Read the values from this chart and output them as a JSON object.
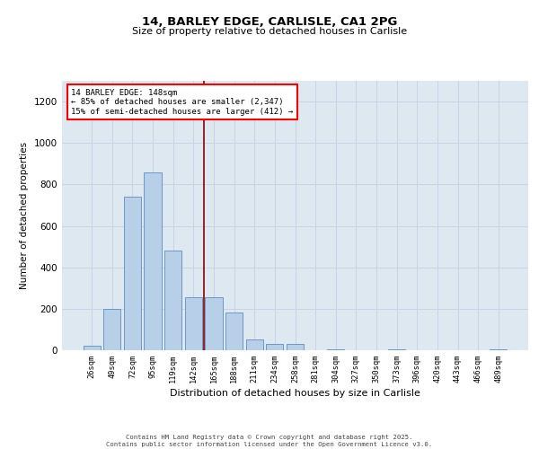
{
  "title_line1": "14, BARLEY EDGE, CARLISLE, CA1 2PG",
  "title_line2": "Size of property relative to detached houses in Carlisle",
  "xlabel": "Distribution of detached houses by size in Carlisle",
  "ylabel": "Number of detached properties",
  "categories": [
    "26sqm",
    "49sqm",
    "72sqm",
    "95sqm",
    "119sqm",
    "142sqm",
    "165sqm",
    "188sqm",
    "211sqm",
    "234sqm",
    "258sqm",
    "281sqm",
    "304sqm",
    "327sqm",
    "350sqm",
    "373sqm",
    "396sqm",
    "420sqm",
    "443sqm",
    "466sqm",
    "489sqm"
  ],
  "values": [
    20,
    200,
    740,
    860,
    480,
    255,
    255,
    180,
    50,
    30,
    30,
    0,
    5,
    0,
    0,
    5,
    0,
    0,
    0,
    0,
    3
  ],
  "bar_color": "#b8cfe8",
  "bar_edge_color": "#5b8ec4",
  "bar_width": 0.85,
  "ylim": [
    0,
    1300
  ],
  "yticks": [
    0,
    200,
    400,
    600,
    800,
    1000,
    1200
  ],
  "grid_color": "#c8d4e4",
  "background_color": "#dde8f0",
  "annotation_line1": "14 BARLEY EDGE: 148sqm",
  "annotation_line2": "← 85% of detached houses are smaller (2,347)",
  "annotation_line3": "15% of semi-detached houses are larger (412) →",
  "red_line_index": 5.5,
  "footer_line1": "Contains HM Land Registry data © Crown copyright and database right 2025.",
  "footer_line2": "Contains public sector information licensed under the Open Government Licence v3.0."
}
